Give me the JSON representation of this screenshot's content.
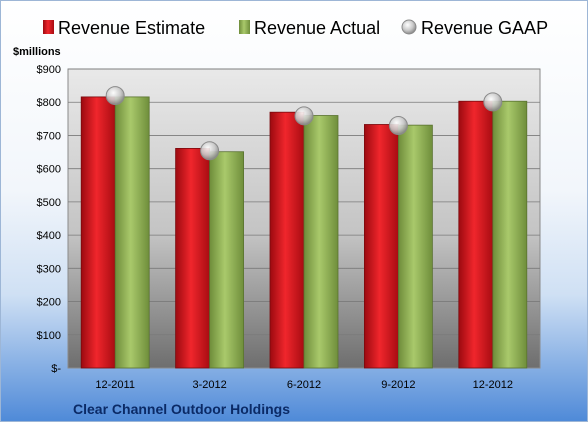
{
  "chart_data": {
    "type": "bar",
    "title": "Clear Channel Outdoor Holdings",
    "ylabel": "$millions",
    "categories": [
      "12-2011",
      "3-2012",
      "6-2012",
      "9-2012",
      "12-2012"
    ],
    "series": [
      {
        "name": "Revenue Estimate",
        "type": "bar",
        "color": "#e0101a",
        "values": [
          816,
          661,
          770,
          733,
          803
        ]
      },
      {
        "name": "Revenue Actual",
        "type": "bar",
        "color": "#8fb14f",
        "values": [
          816,
          651,
          760,
          731,
          803
        ]
      },
      {
        "name": "Revenue GAAP",
        "type": "marker",
        "color": "#c8c8c8",
        "values": [
          820,
          654,
          759,
          730,
          801
        ]
      }
    ],
    "ylim": [
      0,
      900
    ],
    "yticks": [
      0,
      100,
      200,
      300,
      400,
      500,
      600,
      700,
      800,
      900
    ],
    "ytick_labels": [
      "$-",
      "$100",
      "$200",
      "$300",
      "$400",
      "$500",
      "$600",
      "$700",
      "$800",
      "$900"
    ],
    "grid": true,
    "legend": "top"
  }
}
